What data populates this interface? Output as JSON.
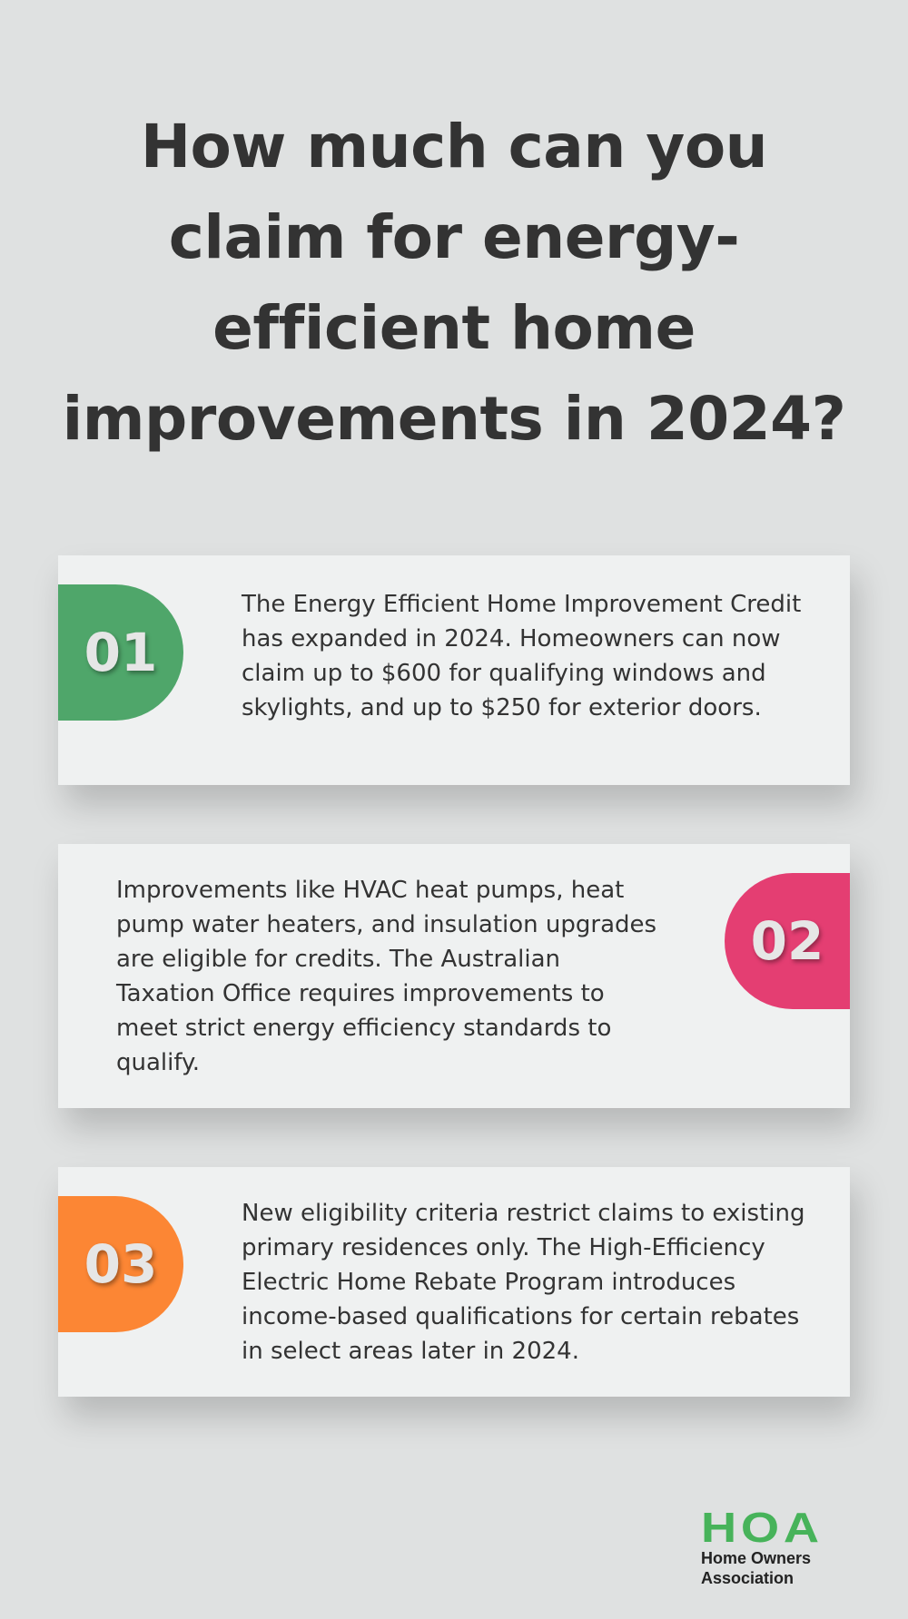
{
  "title": "How much can you claim for energy-efficient home improvements in 2024?",
  "cards": [
    {
      "number": "01",
      "color": "#4fa66a",
      "text": "The Energy Efficient Home Improvement Credit has expanded in 2024. Homeowners can now claim up to $600 for qualifying windows and skylights, and up to $250 for exterior doors."
    },
    {
      "number": "02",
      "color": "#e43e72",
      "text": "Improvements like HVAC heat pumps, heat pump water heaters, and insulation upgrades are eligible for credits. The Australian Taxation Office requires improvements to meet strict energy efficiency standards to qualify."
    },
    {
      "number": "03",
      "color": "#fc8634",
      "text": "New eligibility criteria restrict claims to existing primary residences only. The High-Efficiency Electric Home Rebate Program introduces income-based qualifications for certain rebates in select areas later in 2024."
    }
  ],
  "logo": {
    "mark": "HOA",
    "line1": "Home Owners",
    "line2": "Association",
    "color": "#47b35a"
  }
}
